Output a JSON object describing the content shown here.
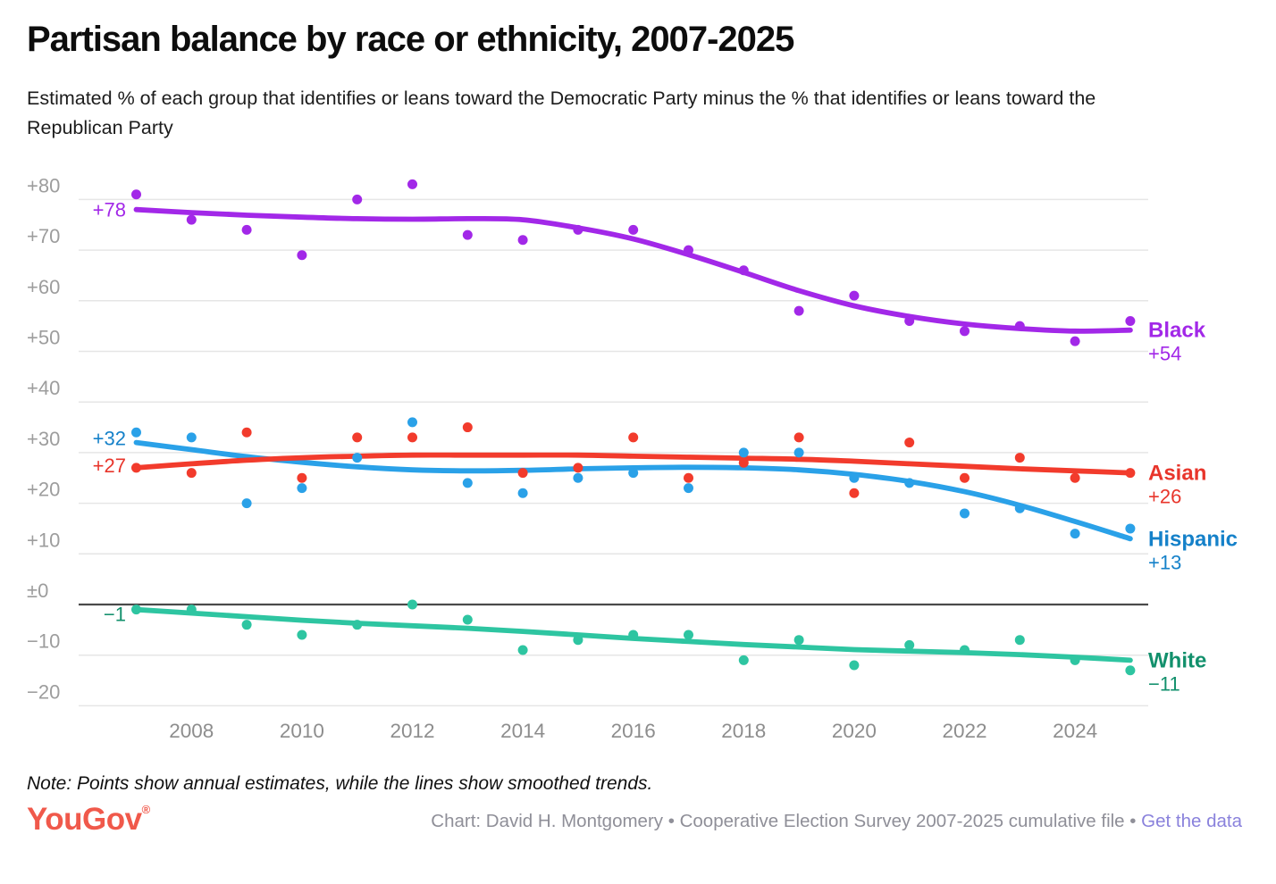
{
  "header": {
    "title": "Partisan balance by race or ethnicity, 2007-2025",
    "subtitle": "Estimated % of each group that identifies or leans toward the Democratic Party minus the % that identifies or leans toward the Republican Party"
  },
  "chart_data": {
    "type": "scatter",
    "description": "Dots are annual estimates, thick curves are smoothed trends",
    "x": [
      2007,
      2008,
      2009,
      2010,
      2011,
      2012,
      2013,
      2014,
      2015,
      2016,
      2017,
      2018,
      2019,
      2020,
      2021,
      2022,
      2023,
      2024,
      2025
    ],
    "x_ticks": [
      {
        "value": 2008,
        "label": "2008"
      },
      {
        "value": 2010,
        "label": "2010"
      },
      {
        "value": 2012,
        "label": "2012"
      },
      {
        "value": 2014,
        "label": "2014"
      },
      {
        "value": 2016,
        "label": "2016"
      },
      {
        "value": 2018,
        "label": "2018"
      },
      {
        "value": 2020,
        "label": "2020"
      },
      {
        "value": 2022,
        "label": "2022"
      },
      {
        "value": 2024,
        "label": "2024"
      }
    ],
    "y_ticks": [
      {
        "value": 80,
        "label": "+80"
      },
      {
        "value": 70,
        "label": "+70"
      },
      {
        "value": 60,
        "label": "+60"
      },
      {
        "value": 50,
        "label": "+50"
      },
      {
        "value": 40,
        "label": "+40"
      },
      {
        "value": 30,
        "label": "+30"
      },
      {
        "value": 20,
        "label": "+20"
      },
      {
        "value": 10,
        "label": "+10"
      },
      {
        "value": 0,
        "label": "±0"
      },
      {
        "value": -10,
        "label": "−10"
      },
      {
        "value": -20,
        "label": "−20"
      }
    ],
    "ylim": [
      -22,
      84
    ],
    "grid": true,
    "zero_line": true,
    "legend_position": "right-edge-labels",
    "series": [
      {
        "name": "Black",
        "color": "#A228E8",
        "label_color": "#A228E8",
        "start_label": "+78",
        "end_value_label": "+54",
        "start_dy": 0,
        "points": [
          81,
          76,
          74,
          69,
          80,
          83,
          73,
          72,
          74,
          74,
          70,
          66,
          58,
          61,
          56,
          54,
          55,
          52,
          56
        ],
        "trend": [
          78,
          77.4,
          76.9,
          76.5,
          76.2,
          76.1,
          76.2,
          76,
          74.4,
          72.2,
          69.1,
          65.6,
          62,
          59,
          56.9,
          55.4,
          54.5,
          54,
          54.2
        ]
      },
      {
        "name": "Hispanic",
        "color": "#2AA1E8",
        "label_color": "#1581C9",
        "start_label": "+32",
        "end_value_label": "+13",
        "start_dy": -5,
        "points": [
          34,
          33,
          20,
          23,
          29,
          36,
          24,
          22,
          25,
          26,
          23,
          30,
          30,
          25,
          24,
          18,
          19,
          14,
          15
        ],
        "trend": [
          32,
          30.6,
          29.2,
          28.1,
          27.2,
          26.6,
          26.4,
          26.5,
          26.8,
          27,
          27.1,
          27,
          26.6,
          25.7,
          24.3,
          22.3,
          19.6,
          16.4,
          13
        ]
      },
      {
        "name": "Asian",
        "color": "#F23B2C",
        "label_color": "#E8352B",
        "start_label": "+27",
        "end_value_label": "+26",
        "start_dy": -3,
        "points": [
          27,
          26,
          34,
          25,
          33,
          33,
          35,
          26,
          27,
          33,
          25,
          28,
          33,
          22,
          32,
          25,
          29,
          25,
          26
        ],
        "trend": [
          27,
          27.8,
          28.5,
          29,
          29.3,
          29.5,
          29.5,
          29.5,
          29.5,
          29.3,
          29.1,
          28.9,
          28.7,
          28.3,
          27.8,
          27.3,
          26.8,
          26.4,
          26
        ]
      },
      {
        "name": "White",
        "color": "#2EC5A1",
        "label_color": "#12906C",
        "start_label": "−1",
        "end_value_label": "−11",
        "start_dy": 5,
        "points": [
          -1,
          -1,
          -4,
          -6,
          -4,
          0,
          -3,
          -9,
          -7,
          -6,
          -6,
          -11,
          -7,
          -12,
          -8,
          -9,
          -7,
          -11,
          -13
        ],
        "trend": [
          -1,
          -1.7,
          -2.4,
          -3.1,
          -3.7,
          -4.2,
          -4.7,
          -5.3,
          -6,
          -6.7,
          -7.3,
          -7.9,
          -8.4,
          -8.9,
          -9.2,
          -9.5,
          -9.9,
          -10.4,
          -11
        ]
      }
    ]
  },
  "note": {
    "text": "Note: Points show annual estimates, while the lines show smoothed trends."
  },
  "footer": {
    "logo_text": "YouGov",
    "logo_mark": "®",
    "credit": "Chart: David H. Montgomery • Cooperative Election Survey 2007-2025 cumulative file • ",
    "link_label": "Get the data"
  },
  "colors": {
    "grid": "#e6e6e6",
    "zero_line": "#4a4a4a",
    "y_tick_text": "#9d9d9d",
    "x_tick_text": "#8d8d8d",
    "logo": "#F0594B",
    "credit_text": "#8f8f98",
    "link": "#8A82DC"
  }
}
